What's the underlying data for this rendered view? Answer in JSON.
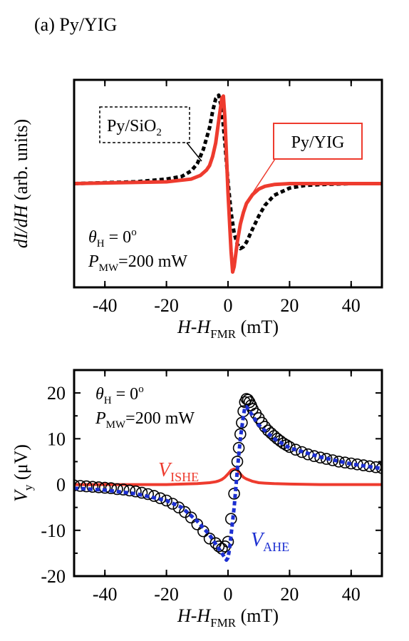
{
  "figure": {
    "panel_label": "(a) Py/YIG"
  },
  "chart_data": [
    {
      "type": "line",
      "panel": "top",
      "xlabel": {
        "main": "H-H",
        "sub": "FMR",
        "unit": " (mT)"
      },
      "ylabel": {
        "main": "dI/dH",
        "unit": "  (arb. units)"
      },
      "xlim": [
        -50,
        50
      ],
      "xticks": [
        -40,
        -20,
        0,
        20,
        40
      ],
      "annotations": {
        "theta": {
          "sym": "θ",
          "sub": "H",
          "rest": " = 0",
          "sup": "o"
        },
        "power": {
          "sym": "P",
          "sub": "MW",
          "rest": "=200 mW"
        }
      },
      "series": [
        {
          "name": "Py/SiO2",
          "label_main": "Py/SiO",
          "label_sub": "2",
          "color": "#000000",
          "style": "dashed",
          "x": [
            -50,
            -30,
            -20,
            -15,
            -12,
            -10,
            -8,
            -6,
            -5,
            -4,
            -3,
            -2,
            -1,
            0,
            1,
            2,
            3,
            4,
            5,
            6,
            8,
            10,
            12,
            15,
            20,
            25,
            30,
            40,
            50
          ],
          "y": [
            0.0,
            0.02,
            0.05,
            0.08,
            0.14,
            0.22,
            0.38,
            0.62,
            0.8,
            0.94,
            0.98,
            0.82,
            0.45,
            0.02,
            -0.32,
            -0.55,
            -0.67,
            -0.72,
            -0.7,
            -0.65,
            -0.5,
            -0.36,
            -0.24,
            -0.13,
            -0.05,
            -0.02,
            -0.01,
            0.0,
            0.0
          ]
        },
        {
          "name": "Py/YIG",
          "label_main": "Py/YIG",
          "color": "#ee3b2e",
          "style": "solid",
          "x": [
            -50,
            -20,
            -12,
            -9,
            -7,
            -6,
            -5,
            -4,
            -3,
            -2,
            -1.5,
            -1,
            0,
            1,
            1.5,
            2,
            3,
            4,
            5,
            6,
            8,
            10,
            12,
            15,
            20,
            25,
            30,
            40,
            50
          ],
          "y": [
            0.0,
            0.02,
            0.05,
            0.09,
            0.15,
            0.2,
            0.3,
            0.45,
            0.7,
            0.95,
            0.97,
            0.72,
            -0.1,
            -0.75,
            -0.98,
            -0.92,
            -0.65,
            -0.45,
            -0.32,
            -0.22,
            -0.12,
            -0.06,
            -0.03,
            -0.01,
            0.0,
            0.0,
            0.0,
            0.0,
            0.0
          ]
        }
      ]
    },
    {
      "type": "scatter",
      "panel": "bottom",
      "xlabel": {
        "main": "H-H",
        "sub": "FMR",
        "unit": " (mT)"
      },
      "ylabel": {
        "main": "V",
        "sub": "y",
        "unit": "  (μV)"
      },
      "xlim": [
        -50,
        50
      ],
      "ylim": [
        -20,
        25
      ],
      "xticks": [
        -40,
        -20,
        0,
        20,
        40
      ],
      "yticks": [
        -20,
        -10,
        0,
        10,
        20
      ],
      "annotations": {
        "theta": {
          "sym": "θ",
          "sub": "H",
          "rest": " = 0",
          "sup": "o"
        },
        "power": {
          "sym": "P",
          "sub": "MW",
          "rest": "=200 mW"
        }
      },
      "series": [
        {
          "name": "V_ISHE",
          "label_main": "V",
          "label_sub": "ISHE",
          "color": "#ee3b2e",
          "style": "solid",
          "x": [
            -50,
            -30,
            -20,
            -15,
            -10,
            -8,
            -6,
            -4,
            -3,
            -2,
            -1,
            0,
            1,
            2,
            3,
            4,
            5,
            6,
            8,
            10,
            12,
            15,
            20,
            30,
            40,
            50
          ],
          "y": [
            0,
            0,
            0,
            0.1,
            0.2,
            0.3,
            0.4,
            0.6,
            0.8,
            1.1,
            1.6,
            2.3,
            3.1,
            3.4,
            3.2,
            2.3,
            1.6,
            1.2,
            0.7,
            0.4,
            0.3,
            0.2,
            0.1,
            0,
            0,
            0
          ]
        },
        {
          "name": "V_AHE",
          "label_main": "V",
          "label_sub": "AHE",
          "color": "#1c2fd1",
          "style": "dashed",
          "x": [
            -50,
            -40,
            -30,
            -20,
            -15,
            -10,
            -6,
            -4,
            -2,
            -1,
            -0.5,
            0,
            0.5,
            1,
            2,
            3,
            4,
            5,
            5.5,
            6,
            8,
            10,
            15,
            20,
            30,
            40,
            50
          ],
          "y": [
            -0.8,
            -1.2,
            -2,
            -3.5,
            -5,
            -8,
            -11,
            -13,
            -15,
            -16,
            -16.5,
            -16,
            -14,
            -11,
            -5,
            3,
            10,
            15,
            17,
            17,
            15,
            13,
            10,
            8,
            6,
            4.5,
            3.5
          ]
        },
        {
          "name": "V_y",
          "marker": "open-circle",
          "color": "#000000",
          "x": [
            -50,
            -48,
            -46,
            -44,
            -42,
            -40,
            -38,
            -36,
            -34,
            -32,
            -30,
            -28,
            -26,
            -24,
            -22,
            -20,
            -18,
            -16,
            -14,
            -12,
            -10,
            -8,
            -6,
            -4,
            -3,
            -2,
            -1,
            0,
            1,
            2,
            2.5,
            3,
            3.5,
            4,
            4.5,
            5,
            5.5,
            6,
            6.5,
            7,
            7.5,
            8,
            9,
            10,
            11,
            12,
            13,
            14,
            15,
            16,
            17,
            18,
            19,
            20,
            22,
            24,
            26,
            28,
            30,
            32,
            34,
            36,
            38,
            40,
            42,
            44,
            46,
            48,
            50
          ],
          "y": [
            -0.2,
            -0.3,
            -0.4,
            -0.5,
            -0.6,
            -0.7,
            -0.8,
            -1.0,
            -1.1,
            -1.3,
            -1.5,
            -1.8,
            -2.1,
            -2.5,
            -3.0,
            -3.5,
            -4.2,
            -5.0,
            -6.0,
            -7.2,
            -8.7,
            -10.2,
            -11.8,
            -12.8,
            -13.5,
            -14.0,
            -13.5,
            -12.5,
            -7.5,
            -2,
            2,
            5,
            8,
            11,
            13.5,
            16,
            18,
            18.7,
            18.5,
            18,
            17.3,
            16.5,
            15.5,
            14.5,
            13.5,
            12.6,
            11.8,
            11.2,
            10.6,
            10.0,
            9.5,
            9.0,
            8.6,
            8.2,
            7.6,
            7.1,
            6.6,
            6.2,
            5.9,
            5.6,
            5.3,
            5.0,
            4.8,
            4.6,
            4.4,
            4.2,
            4.0,
            3.8,
            3.6
          ]
        }
      ]
    }
  ]
}
